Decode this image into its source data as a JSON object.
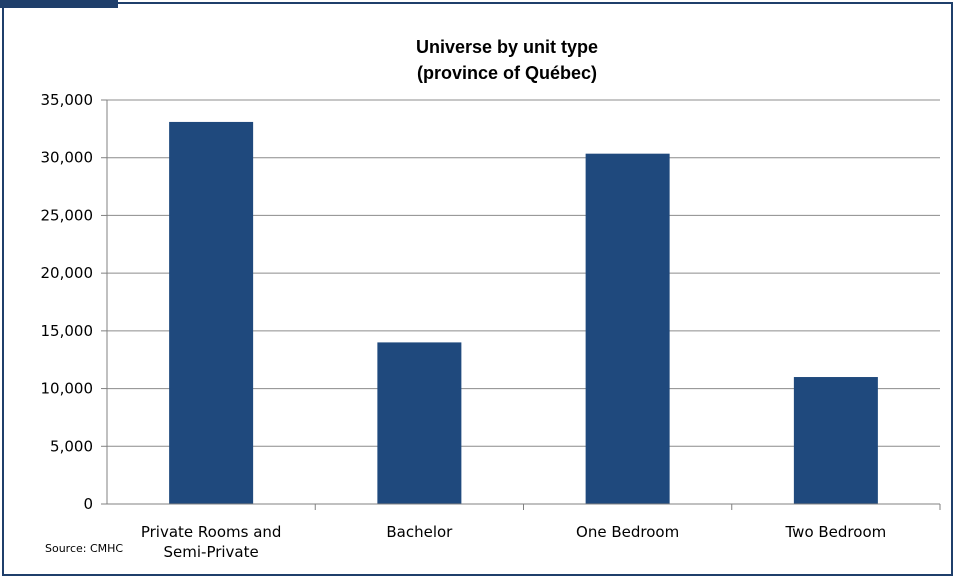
{
  "chart_data": {
    "type": "bar",
    "title": [
      "Universe by unit type",
      "(province of Québec)"
    ],
    "categories": [
      [
        "Private Rooms and",
        "Semi-Private"
      ],
      [
        "Bachelor"
      ],
      [
        "One Bedroom"
      ],
      [
        "Two Bedroom"
      ]
    ],
    "values": [
      33100,
      14000,
      30350,
      11000
    ],
    "ylim": [
      0,
      35000
    ],
    "yticks": [
      0,
      5000,
      10000,
      15000,
      20000,
      25000,
      30000,
      35000
    ],
    "ytick_labels": [
      "0",
      "5,000",
      "10,000",
      "15,000",
      "20,000",
      "25,000",
      "30,000",
      "35,000"
    ],
    "bar_color": "#1f497d",
    "grid": true,
    "legend": "none"
  },
  "source": "Source: CMHC"
}
